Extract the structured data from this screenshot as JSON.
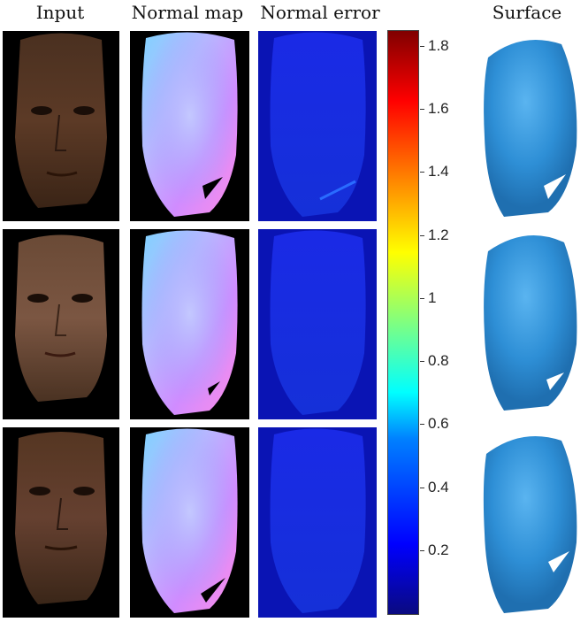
{
  "columns": {
    "input": "Input",
    "normal_map": "Normal map",
    "normal_error": "Normal error",
    "surface": "Surface"
  },
  "colorbar": {
    "colormap": "jet",
    "min": 0,
    "max": 1.85,
    "ticks": [
      "1.8",
      "1.6",
      "1.4",
      "1.2",
      "1",
      "0.8",
      "0.6",
      "0.4",
      "0.2"
    ],
    "tick_values": [
      1.8,
      1.6,
      1.4,
      1.2,
      1.0,
      0.8,
      0.6,
      0.4,
      0.2
    ]
  },
  "colors": {
    "error_bg": "#0a14b4",
    "surface": "#2e8fd6"
  }
}
